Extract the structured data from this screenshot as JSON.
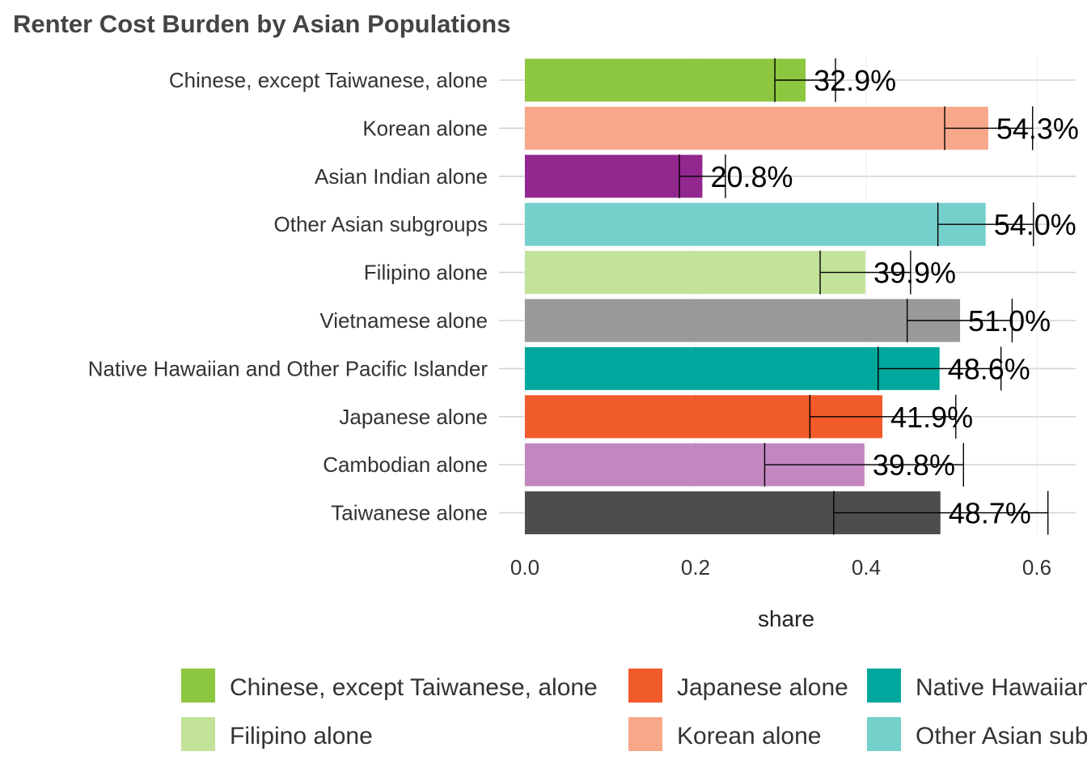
{
  "chart_data": {
    "type": "bar",
    "orientation": "horizontal",
    "title": "Renter Cost Burden by Asian Populations",
    "xlabel": "share",
    "ylabel": "",
    "xlim": [
      0,
      0.64
    ],
    "x_ticks": [
      "0.0",
      "0.2",
      "0.4",
      "0.6"
    ],
    "grid": true,
    "legend_position": "bottom",
    "categories": [
      "Chinese, except Taiwanese, alone",
      "Korean alone",
      "Asian Indian alone",
      "Other Asian subgroups",
      "Filipino alone",
      "Vietnamese alone",
      "Native Hawaiian and Other Pacific Islander",
      "Japanese alone",
      "Cambodian alone",
      "Taiwanese alone"
    ],
    "values": [
      0.329,
      0.543,
      0.208,
      0.54,
      0.399,
      0.51,
      0.486,
      0.419,
      0.398,
      0.487
    ],
    "value_labels": [
      "32.9%",
      "54.3%",
      "20.8%",
      "54.0%",
      "39.9%",
      "51.0%",
      "48.6%",
      "41.9%",
      "39.8%",
      "48.7%"
    ],
    "error_low": [
      0.293,
      0.492,
      0.181,
      0.484,
      0.346,
      0.448,
      0.414,
      0.334,
      0.281,
      0.362
    ],
    "error_high": [
      0.364,
      0.595,
      0.235,
      0.596,
      0.452,
      0.571,
      0.558,
      0.505,
      0.514,
      0.613
    ],
    "colors": [
      "#8DC63F",
      "#F7A78A",
      "#92278F",
      "#75D0CC",
      "#C3E29A",
      "#999999",
      "#00A79D",
      "#F15A2B",
      "#C386C0",
      "#4D4D4D"
    ],
    "legend": [
      {
        "label": "Asian Indian alone",
        "color": "#92278F"
      },
      {
        "label": "Cambodian alone",
        "color": "#C386C0"
      },
      {
        "label": "Chinese, except Taiwanese, alone",
        "color": "#8DC63F"
      },
      {
        "label": "Filipino alone",
        "color": "#C3E29A"
      },
      {
        "label": "Japanese alone",
        "color": "#F15A2B"
      },
      {
        "label": "Korean alone",
        "color": "#F7A78A"
      },
      {
        "label": "Native Hawaiian and Other Pacific Islander",
        "color": "#00A79D"
      },
      {
        "label": "Other Asian subgroups",
        "color": "#75D0CC"
      }
    ]
  }
}
